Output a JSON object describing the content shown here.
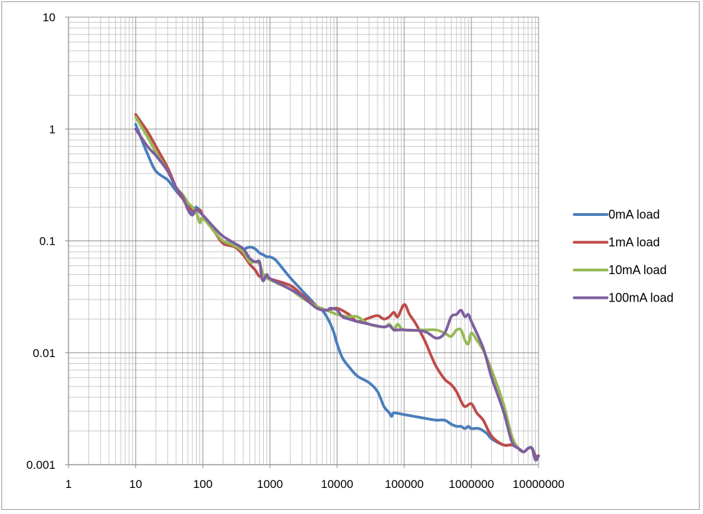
{
  "chart_data": {
    "type": "line",
    "title": "",
    "xlabel": "",
    "ylabel": "",
    "xscale": "log",
    "yscale": "log",
    "xlim": [
      1,
      10000000
    ],
    "ylim": [
      0.001,
      10
    ],
    "grid": true,
    "legend_position": "right",
    "x_tick_labels": [
      "1",
      "10",
      "100",
      "1000",
      "10000",
      "100000",
      "1000000",
      "10000000"
    ],
    "y_tick_labels": [
      "10",
      "1",
      "0.1",
      "0.01",
      "0.001"
    ],
    "series": [
      {
        "name": "0mA load",
        "color": "#4a7ebb",
        "points": [
          [
            10,
            1.1
          ],
          [
            15,
            0.6
          ],
          [
            20,
            0.42
          ],
          [
            30,
            0.35
          ],
          [
            40,
            0.28
          ],
          [
            60,
            0.21
          ],
          [
            70,
            0.18
          ],
          [
            80,
            0.2
          ],
          [
            100,
            0.17
          ],
          [
            150,
            0.12
          ],
          [
            200,
            0.1
          ],
          [
            300,
            0.092
          ],
          [
            400,
            0.085
          ],
          [
            500,
            0.088
          ],
          [
            600,
            0.085
          ],
          [
            700,
            0.078
          ],
          [
            800,
            0.075
          ],
          [
            900,
            0.072
          ],
          [
            1000,
            0.072
          ],
          [
            1200,
            0.068
          ],
          [
            1500,
            0.058
          ],
          [
            2000,
            0.047
          ],
          [
            3000,
            0.036
          ],
          [
            4000,
            0.03
          ],
          [
            5000,
            0.026
          ],
          [
            6000,
            0.024
          ],
          [
            7000,
            0.021
          ],
          [
            8000,
            0.018
          ],
          [
            9000,
            0.015
          ],
          [
            10000,
            0.012
          ],
          [
            12000,
            0.009
          ],
          [
            15000,
            0.0075
          ],
          [
            20000,
            0.0062
          ],
          [
            30000,
            0.0054
          ],
          [
            40000,
            0.0045
          ],
          [
            50000,
            0.0033
          ],
          [
            60000,
            0.0029
          ],
          [
            65000,
            0.0027
          ],
          [
            70000,
            0.0029
          ],
          [
            100000,
            0.0028
          ],
          [
            200000,
            0.0026
          ],
          [
            300000,
            0.0025
          ],
          [
            400000,
            0.0025
          ],
          [
            500000,
            0.0023
          ],
          [
            600000,
            0.0022
          ],
          [
            700000,
            0.0022
          ],
          [
            800000,
            0.0021
          ],
          [
            900000,
            0.0022
          ],
          [
            1000000,
            0.0021
          ],
          [
            1300000,
            0.0021
          ],
          [
            1700000,
            0.0019
          ],
          [
            2000000,
            0.0017
          ],
          [
            3000000,
            0.0015
          ],
          [
            4000000,
            0.0015
          ],
          [
            5000000,
            0.0014
          ],
          [
            6000000,
            0.0013
          ],
          [
            7000000,
            0.0014
          ],
          [
            8000000,
            0.0014
          ],
          [
            9000000,
            0.0012
          ],
          [
            10000000,
            0.0012
          ]
        ]
      },
      {
        "name": "1mA load",
        "color": "#be4b48",
        "points": [
          [
            10,
            1.35
          ],
          [
            15,
            0.95
          ],
          [
            20,
            0.7
          ],
          [
            30,
            0.45
          ],
          [
            40,
            0.3
          ],
          [
            50,
            0.24
          ],
          [
            60,
            0.2
          ],
          [
            70,
            0.19
          ],
          [
            80,
            0.18
          ],
          [
            90,
            0.19
          ],
          [
            100,
            0.17
          ],
          [
            150,
            0.12
          ],
          [
            200,
            0.095
          ],
          [
            300,
            0.088
          ],
          [
            400,
            0.075
          ],
          [
            500,
            0.062
          ],
          [
            600,
            0.055
          ],
          [
            700,
            0.048
          ],
          [
            800,
            0.05
          ],
          [
            1000,
            0.046
          ],
          [
            2000,
            0.04
          ],
          [
            3000,
            0.033
          ],
          [
            5000,
            0.026
          ],
          [
            7000,
            0.024
          ],
          [
            10000,
            0.025
          ],
          [
            15000,
            0.022
          ],
          [
            20000,
            0.019
          ],
          [
            30000,
            0.0205
          ],
          [
            40000,
            0.0215
          ],
          [
            50000,
            0.02
          ],
          [
            60000,
            0.021
          ],
          [
            70000,
            0.023
          ],
          [
            80000,
            0.021
          ],
          [
            100000,
            0.027
          ],
          [
            120000,
            0.022
          ],
          [
            150000,
            0.018
          ],
          [
            200000,
            0.013
          ],
          [
            250000,
            0.0095
          ],
          [
            300000,
            0.0075
          ],
          [
            400000,
            0.0058
          ],
          [
            500000,
            0.0052
          ],
          [
            600000,
            0.0045
          ],
          [
            700000,
            0.0037
          ],
          [
            800000,
            0.0033
          ],
          [
            1000000,
            0.0035
          ],
          [
            1200000,
            0.0029
          ],
          [
            1500000,
            0.0025
          ],
          [
            2000000,
            0.0018
          ],
          [
            3000000,
            0.0015
          ],
          [
            4000000,
            0.0015
          ],
          [
            5000000,
            0.0014
          ],
          [
            6000000,
            0.0013
          ],
          [
            7000000,
            0.0014
          ],
          [
            8000000,
            0.0014
          ],
          [
            9000000,
            0.0012
          ],
          [
            10000000,
            0.0012
          ]
        ]
      },
      {
        "name": "10mA load",
        "color": "#98b954",
        "points": [
          [
            10,
            1.28
          ],
          [
            15,
            0.85
          ],
          [
            20,
            0.62
          ],
          [
            30,
            0.42
          ],
          [
            40,
            0.3
          ],
          [
            50,
            0.26
          ],
          [
            60,
            0.22
          ],
          [
            70,
            0.2
          ],
          [
            80,
            0.18
          ],
          [
            90,
            0.145
          ],
          [
            100,
            0.16
          ],
          [
            150,
            0.12
          ],
          [
            200,
            0.1
          ],
          [
            300,
            0.09
          ],
          [
            400,
            0.08
          ],
          [
            500,
            0.065
          ],
          [
            600,
            0.065
          ],
          [
            700,
            0.062
          ],
          [
            800,
            0.05
          ],
          [
            1000,
            0.045
          ],
          [
            2000,
            0.037
          ],
          [
            3000,
            0.031
          ],
          [
            5000,
            0.026
          ],
          [
            7000,
            0.024
          ],
          [
            10000,
            0.022
          ],
          [
            15000,
            0.021
          ],
          [
            20000,
            0.021
          ],
          [
            30000,
            0.018
          ],
          [
            50000,
            0.017
          ],
          [
            60000,
            0.018
          ],
          [
            70000,
            0.016
          ],
          [
            80000,
            0.018
          ],
          [
            100000,
            0.016
          ],
          [
            200000,
            0.016
          ],
          [
            300000,
            0.016
          ],
          [
            400000,
            0.015
          ],
          [
            500000,
            0.014
          ],
          [
            600000,
            0.016
          ],
          [
            700000,
            0.016
          ],
          [
            800000,
            0.013
          ],
          [
            900000,
            0.012
          ],
          [
            1000000,
            0.015
          ],
          [
            1200000,
            0.013
          ],
          [
            1500000,
            0.0105
          ],
          [
            2000000,
            0.007
          ],
          [
            3000000,
            0.0035
          ],
          [
            4000000,
            0.0018
          ],
          [
            5000000,
            0.0014
          ],
          [
            6000000,
            0.0013
          ],
          [
            7000000,
            0.0014
          ],
          [
            8000000,
            0.0014
          ],
          [
            9000000,
            0.0011
          ],
          [
            10000000,
            0.0012
          ]
        ]
      },
      {
        "name": "100mA load",
        "color": "#7d5fa0",
        "points": [
          [
            10,
            1.0
          ],
          [
            15,
            0.7
          ],
          [
            20,
            0.58
          ],
          [
            30,
            0.42
          ],
          [
            40,
            0.3
          ],
          [
            50,
            0.25
          ],
          [
            60,
            0.19
          ],
          [
            70,
            0.17
          ],
          [
            80,
            0.19
          ],
          [
            100,
            0.17
          ],
          [
            150,
            0.13
          ],
          [
            200,
            0.11
          ],
          [
            300,
            0.095
          ],
          [
            400,
            0.085
          ],
          [
            500,
            0.07
          ],
          [
            600,
            0.065
          ],
          [
            700,
            0.065
          ],
          [
            750,
            0.048
          ],
          [
            800,
            0.044
          ],
          [
            900,
            0.05
          ],
          [
            1000,
            0.046
          ],
          [
            2000,
            0.037
          ],
          [
            3000,
            0.032
          ],
          [
            5000,
            0.025
          ],
          [
            7000,
            0.024
          ],
          [
            8000,
            0.025
          ],
          [
            10000,
            0.024
          ],
          [
            12000,
            0.021
          ],
          [
            15000,
            0.02
          ],
          [
            20000,
            0.019
          ],
          [
            30000,
            0.018
          ],
          [
            50000,
            0.017
          ],
          [
            60000,
            0.0175
          ],
          [
            70000,
            0.016
          ],
          [
            80000,
            0.016
          ],
          [
            100000,
            0.016
          ],
          [
            200000,
            0.0155
          ],
          [
            300000,
            0.0135
          ],
          [
            400000,
            0.015
          ],
          [
            500000,
            0.021
          ],
          [
            600000,
            0.022
          ],
          [
            700000,
            0.024
          ],
          [
            800000,
            0.021
          ],
          [
            900000,
            0.022
          ],
          [
            1000000,
            0.019
          ],
          [
            1500000,
            0.011
          ],
          [
            2000000,
            0.006
          ],
          [
            3000000,
            0.003
          ],
          [
            4000000,
            0.0016
          ],
          [
            5000000,
            0.0014
          ],
          [
            6000000,
            0.0013
          ],
          [
            7000000,
            0.0014
          ],
          [
            8000000,
            0.0014
          ],
          [
            9000000,
            0.0011
          ],
          [
            10000000,
            0.0012
          ]
        ]
      }
    ]
  }
}
